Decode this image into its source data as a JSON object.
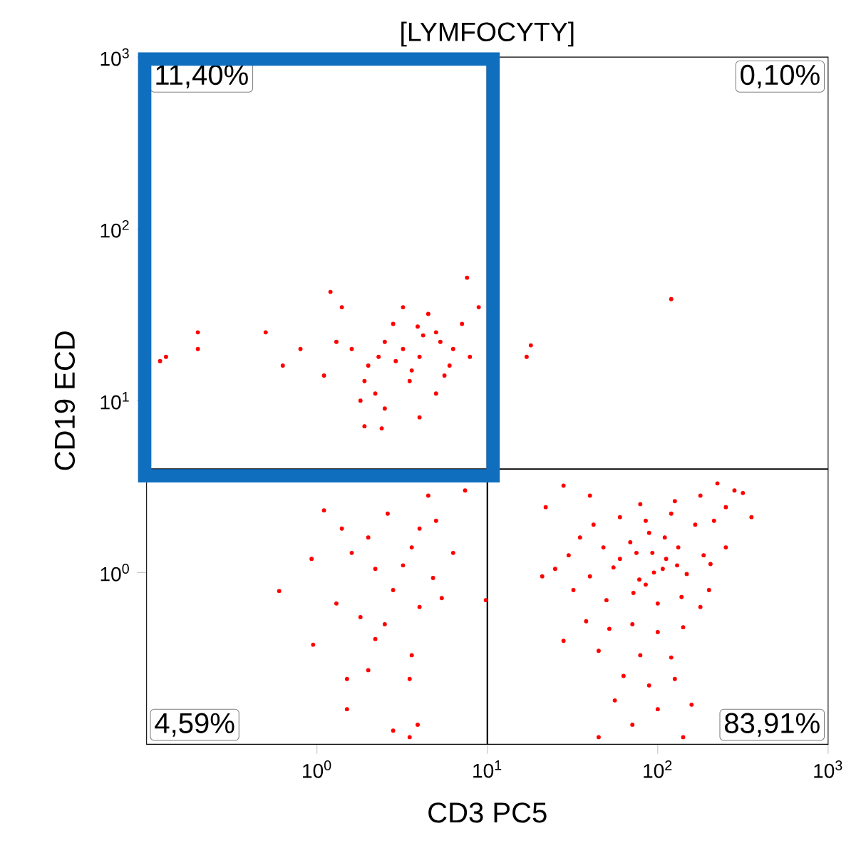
{
  "chart_data": {
    "type": "scatter",
    "title": "[LYMFOCYTY]",
    "xlabel": "CD3 PC5",
    "ylabel": "CD19 ECD",
    "log": "xy",
    "xlim": [
      0.1,
      1000
    ],
    "ylim": [
      0.1,
      1000
    ],
    "xticks": [
      {
        "value": 1,
        "label": "10$^{0}$"
      },
      {
        "value": 10,
        "label": "10$^{1}$"
      },
      {
        "value": 100,
        "label": "10$^{2}$"
      },
      {
        "value": 1000,
        "label": "10$^{3}$"
      }
    ],
    "yticks": [
      {
        "value": 1,
        "label": "10$^{0}$"
      },
      {
        "value": 10,
        "label": "10$^{1}$"
      },
      {
        "value": 100,
        "label": "10$^{2}$"
      },
      {
        "value": 1000,
        "label": "10$^{3}$"
      }
    ],
    "grid": false,
    "ref_lines": [
      {
        "axis": "x",
        "value": 10,
        "color": "#000000"
      },
      {
        "axis": "y",
        "value": 4,
        "color": "#000000"
      }
    ],
    "annotations": [
      "11,40%",
      "0,10%",
      "4,59%",
      "83,91%"
    ],
    "series": [
      {
        "color": "#ff0000",
        "x": [
          3.2,
          4.0,
          2.5,
          5.0,
          2.0,
          3.5,
          6.3,
          4.5,
          2.8,
          1.6,
          1.3,
          0.8,
          0.5,
          5.6,
          7.1,
          7.9,
          2.2,
          1.8,
          4.0,
          2.5,
          8.9,
          7.6,
          1.4,
          5.0,
          3.2,
          0.63,
          1.1,
          0.2,
          0.2,
          0.13,
          0.12,
          1.2,
          3.6,
          4.2,
          2.9,
          6.0,
          5.3,
          2.3,
          3.9,
          1.9,
          1.9,
          2.4,
          18,
          17,
          120,
          7.4,
          4.5,
          1.1,
          2.6,
          3.6,
          0.93,
          0.6,
          2.2,
          4.8,
          9.8,
          1.3,
          1.8,
          5.4,
          0.95,
          2.2,
          3.6,
          1.5,
          3.5,
          2.0,
          1.5,
          3.9,
          2.8,
          2.0,
          2.8,
          4.0,
          3.2,
          1.6,
          5.0,
          2.5,
          4.0,
          1.4,
          6.3,
          3.5,
          42,
          60,
          85,
          120,
          166,
          214,
          48,
          69,
          93,
          132,
          186,
          40,
          55,
          78,
          107,
          148,
          204,
          50,
          72,
          100,
          138,
          178,
          89,
          112,
          79,
          126,
          178,
          251,
          282,
          224,
          316,
          35,
          30,
          25,
          21,
          32,
          38,
          52,
          71,
          100,
          141,
          28,
          45,
          79,
          120,
          63,
          89,
          126,
          56,
          100,
          71,
          158,
          40,
          28,
          22,
          355,
          200,
          251,
          45,
          141,
          60,
          110,
          95,
          75,
          130,
          85
        ],
        "values": [
          20,
          18,
          22,
          25,
          16,
          13,
          20,
          32,
          28,
          20,
          22,
          20,
          25,
          14,
          28,
          18,
          11,
          10,
          8,
          9,
          35,
          52,
          35,
          11,
          35,
          16,
          14,
          25,
          20,
          18,
          17,
          43,
          15,
          24,
          17,
          16,
          22,
          18,
          27,
          13,
          7.1,
          6.9,
          21,
          18,
          39,
          3.0,
          2.8,
          2.3,
          2.2,
          1.4,
          1.2,
          0.78,
          1.05,
          0.93,
          0.69,
          0.66,
          0.55,
          0.71,
          0.38,
          0.41,
          0.33,
          0.24,
          0.24,
          0.27,
          0.16,
          0.13,
          0.12,
          1.6,
          0.79,
          1.8,
          1.1,
          1.3,
          2.0,
          0.5,
          0.63,
          1.8,
          1.3,
          0.11,
          1.9,
          2.1,
          2.0,
          2.2,
          1.9,
          2.0,
          1.4,
          1.5,
          1.3,
          1.4,
          1.26,
          0.95,
          1.07,
          0.91,
          1.05,
          0.98,
          1.12,
          0.69,
          0.76,
          0.66,
          0.72,
          0.63,
          1.7,
          1.2,
          2.5,
          2.6,
          2.8,
          2.4,
          3.0,
          3.3,
          2.9,
          1.6,
          1.26,
          1.05,
          0.95,
          0.79,
          0.52,
          0.47,
          0.5,
          0.45,
          0.48,
          0.4,
          0.35,
          0.33,
          0.32,
          0.25,
          0.22,
          0.24,
          0.18,
          0.16,
          0.13,
          0.17,
          2.8,
          3.2,
          2.4,
          2.1,
          0.79,
          1.4,
          0.11,
          0.11,
          1.2,
          1.6,
          1.0,
          1.3,
          1.1,
          0.85
        ]
      }
    ]
  }
}
